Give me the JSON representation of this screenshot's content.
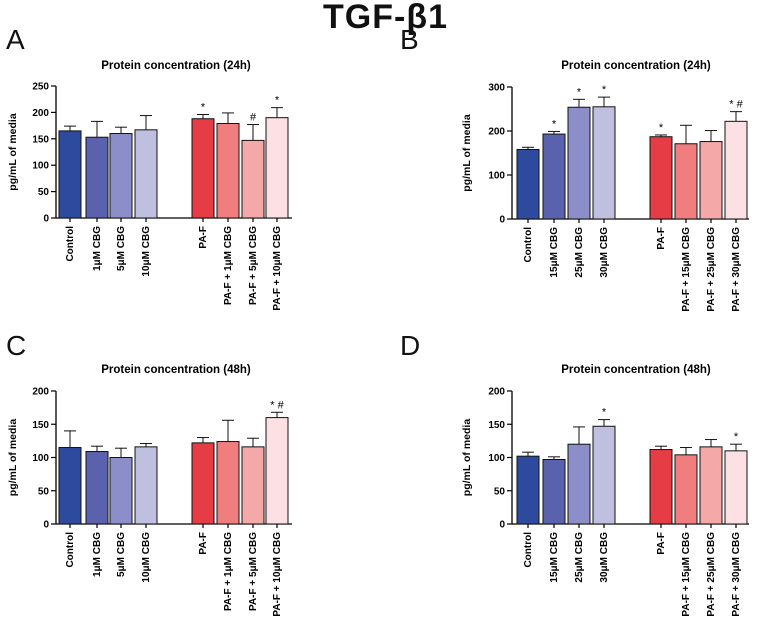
{
  "title": "TGF-β1",
  "colors": {
    "blue": [
      "#2e4a9e",
      "#5b62ad",
      "#8b8ec8",
      "#bfbfe0"
    ],
    "red": [
      "#e63c46",
      "#f07e7e",
      "#f4a8a8",
      "#fde0e3"
    ]
  },
  "chart_data": [
    {
      "panel": "A",
      "type": "bar",
      "title": "Protein concentration (24h)",
      "ylabel": "pg/mL of media",
      "ylim": [
        0,
        250
      ],
      "yticks": [
        "0",
        "50",
        "100",
        "150",
        "200",
        "250"
      ],
      "categories": [
        "Control",
        "1μM CBG",
        "5μM CBG",
        "10μM CBG",
        "PA-F",
        "PA-F + 1μM CBG",
        "PA-F + 5μM CBG",
        "PA-F + 10μM CBG"
      ],
      "values": [
        165,
        153,
        160,
        167,
        188,
        179,
        147,
        190
      ],
      "errors": [
        9,
        30,
        12,
        27,
        8,
        20,
        30,
        19
      ],
      "annotations": [
        "",
        "",
        "",
        "",
        "*",
        "",
        "#",
        "*"
      ]
    },
    {
      "panel": "B",
      "type": "bar",
      "title": "Protein concentration (24h)",
      "ylabel": "pg/mL of media",
      "ylim": [
        0,
        300
      ],
      "yticks": [
        "0",
        "100",
        "200",
        "300"
      ],
      "categories": [
        "Control",
        "15μM CBG",
        "25μM CBG",
        "30μM CBG",
        "PA-F",
        "PA-F + 15μM CBG",
        "PA-F + 25μM CBG",
        "PA-F + 30μM CBG"
      ],
      "values": [
        158,
        193,
        254,
        255,
        187,
        171,
        176,
        222
      ],
      "errors": [
        5,
        6,
        18,
        22,
        4,
        42,
        25,
        22
      ],
      "annotations": [
        "",
        "*",
        "*",
        "*",
        "*",
        "",
        "",
        "* #"
      ]
    },
    {
      "panel": "C",
      "type": "bar",
      "title": "Protein concentration (48h)",
      "ylabel": "pg/mL of media",
      "ylim": [
        0,
        200
      ],
      "yticks": [
        "0",
        "50",
        "100",
        "150",
        "200"
      ],
      "categories": [
        "Control",
        "1μM CBG",
        "5μM CBG",
        "10μM CBG",
        "PA-F",
        "PA-F + 1μM CBG",
        "PA-F + 5μM CBG",
        "PA-F + 10μM CBG"
      ],
      "values": [
        115,
        109,
        100,
        116,
        122,
        124,
        116,
        160
      ],
      "errors": [
        25,
        8,
        14,
        5,
        8,
        32,
        13,
        8
      ],
      "annotations": [
        "",
        "",
        "",
        "",
        "",
        "",
        "",
        "* #"
      ]
    },
    {
      "panel": "D",
      "type": "bar",
      "title": "Protein concentration (48h)",
      "ylabel": "pg/mL of media",
      "ylim": [
        0,
        200
      ],
      "yticks": [
        "0",
        "50",
        "100",
        "150",
        "200"
      ],
      "categories": [
        "Control",
        "15μM CBG",
        "25μM CBG",
        "30μM CBG",
        "PA-F",
        "PA-F + 15μM CBG",
        "PA-F + 25μM CBG",
        "PA-F + 30μM CBG"
      ],
      "values": [
        102,
        97,
        120,
        147,
        112,
        104,
        116,
        110
      ],
      "errors": [
        6,
        4,
        26,
        10,
        5,
        11,
        11,
        10
      ],
      "annotations": [
        "",
        "",
        "",
        "*",
        "",
        "",
        "",
        "*"
      ]
    }
  ]
}
